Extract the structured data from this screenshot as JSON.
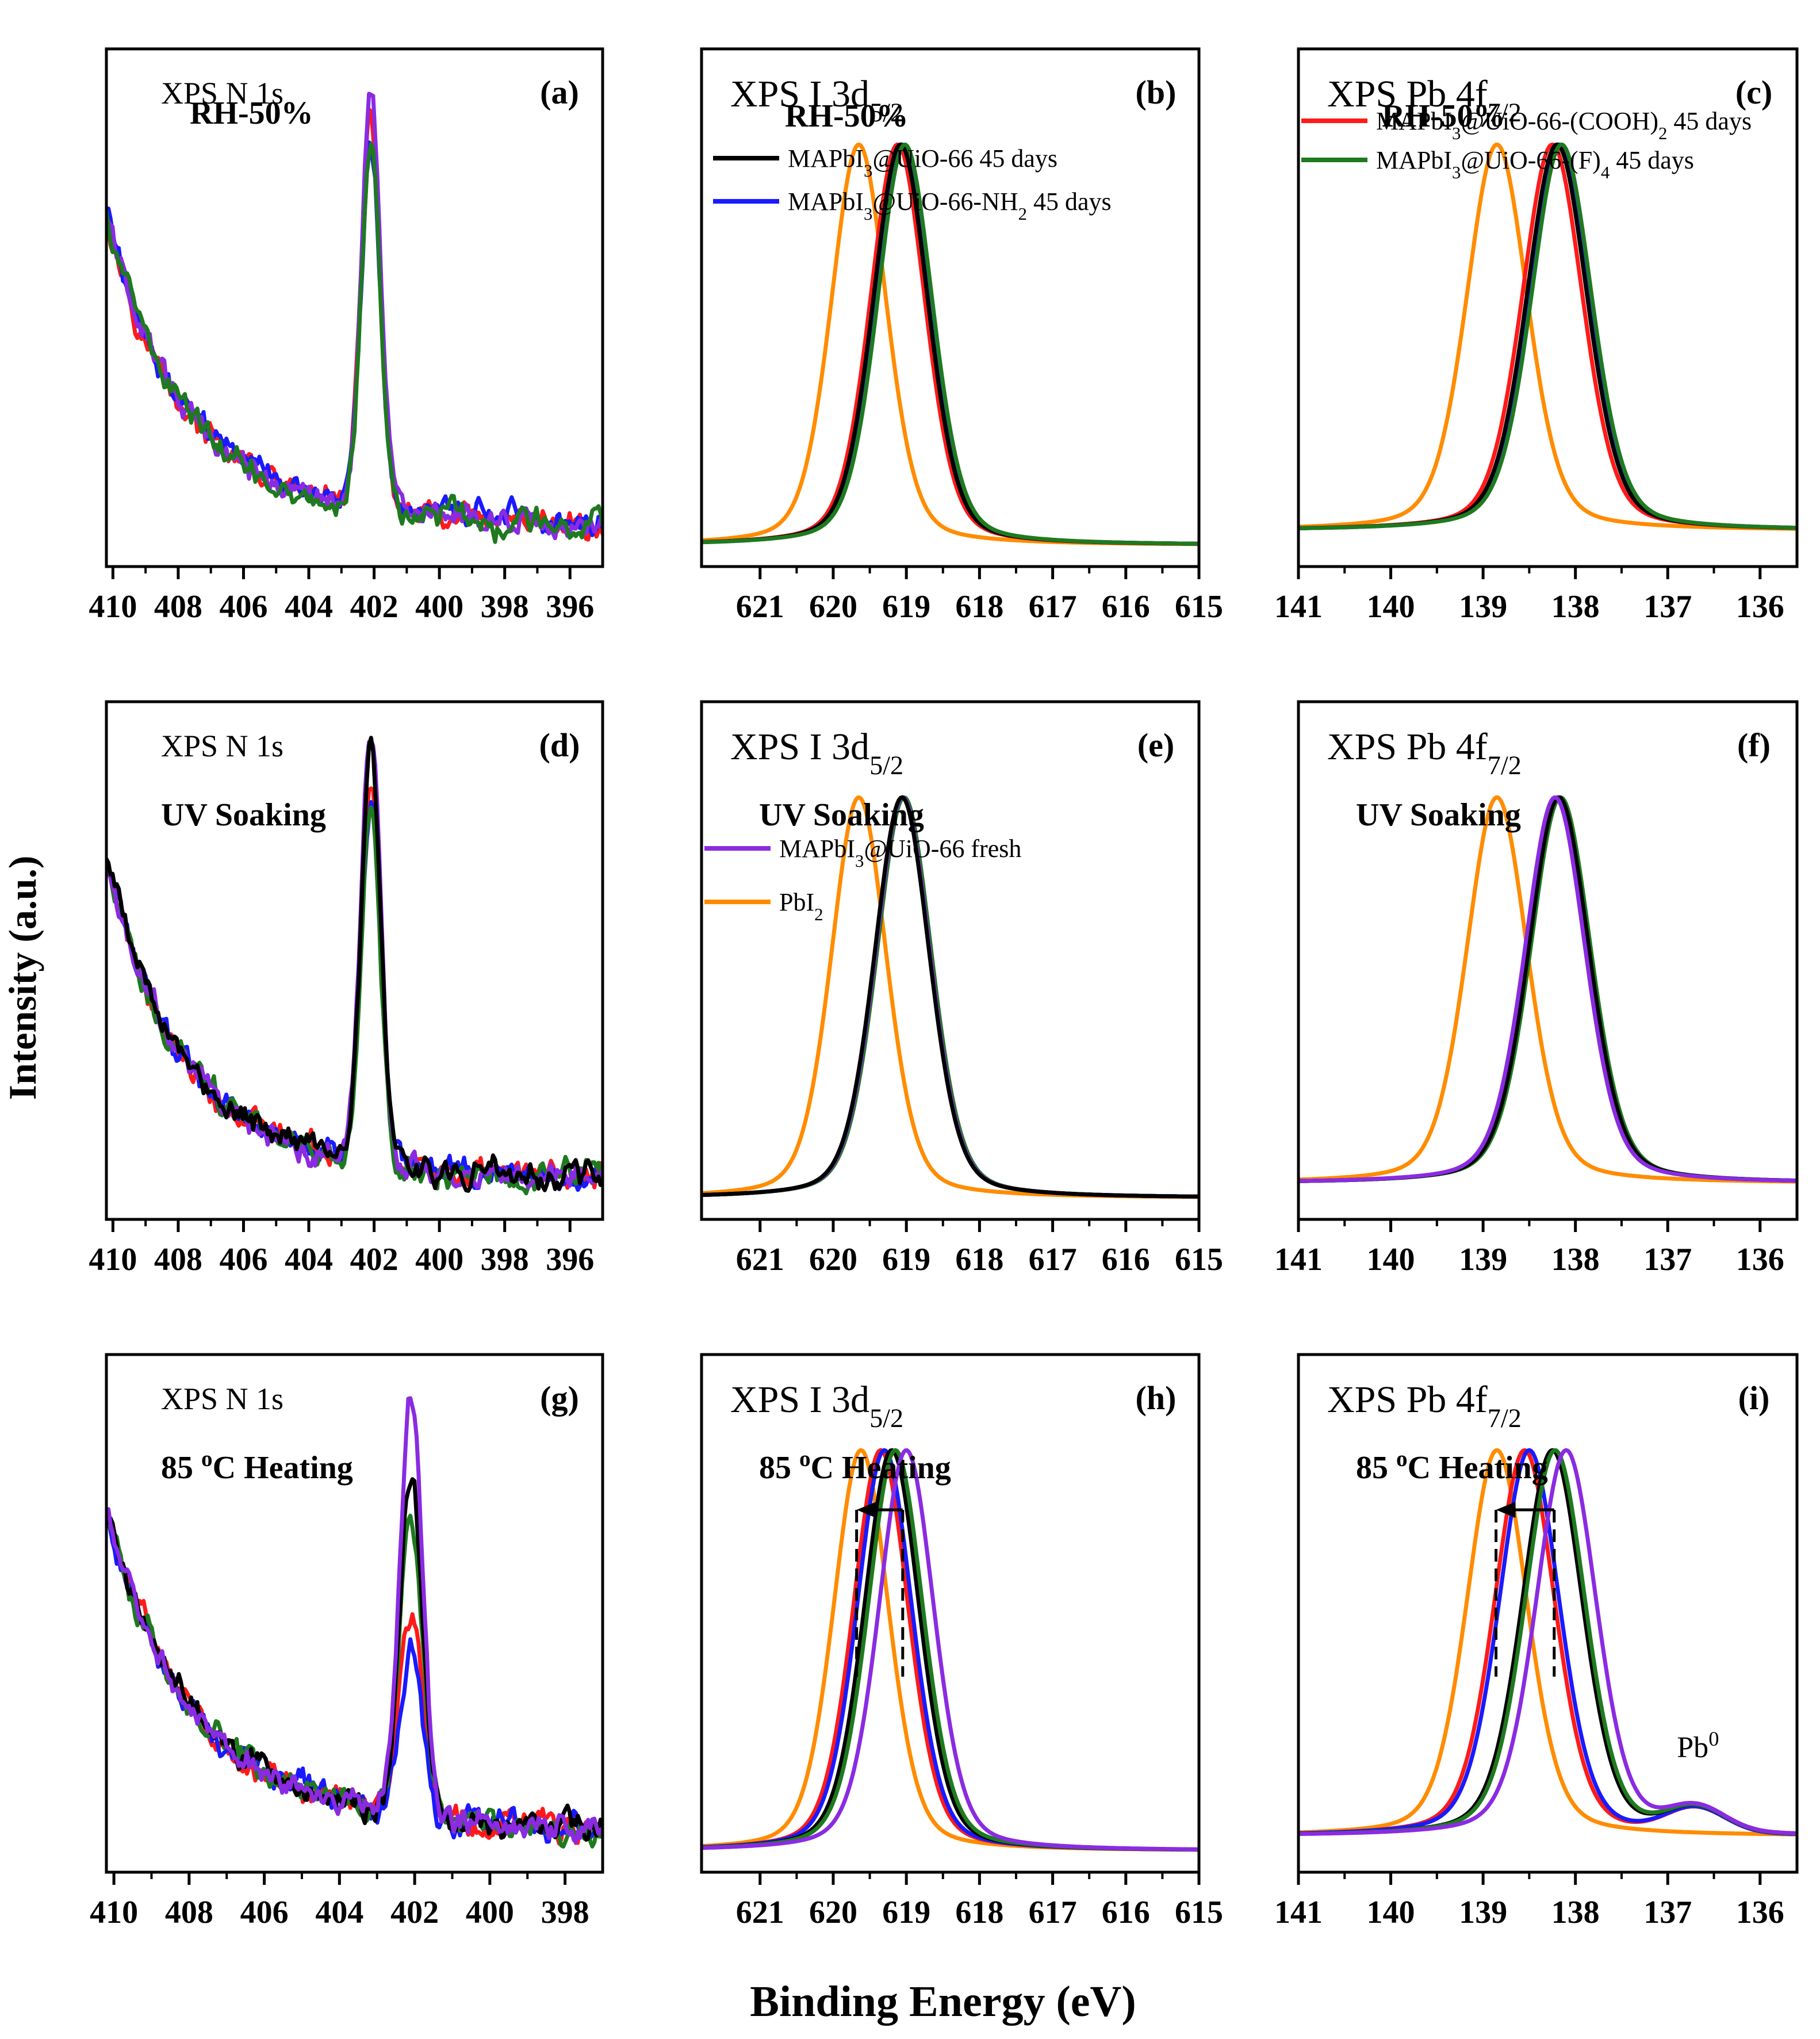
{
  "figure": {
    "ylabel": "Intensity (a.u.)",
    "xlabel": "Binding Energy (eV)"
  },
  "colors": {
    "MAPbI3@UiO-66 45 days": "#000000",
    "MAPbI3@UiO-66-NH2 45 days": "#1a1aff",
    "MAPbI3@UiO-66-(COOH)2 45 days": "#ff1a1a",
    "MAPbI3@UiO-66-(F)4 45 days": "#1f7a1f",
    "MAPbI3@UiO-66 fresh": "#8a2be2",
    "PbI2": "#ff8c00"
  },
  "chart_data": [
    {
      "panel": "(a)",
      "type": "line",
      "title": "XPS N 1s",
      "condition": "RH-50%",
      "kind": "N1s",
      "xlim": [
        410.2,
        395.0
      ],
      "ticks": [
        "410",
        "408",
        "406",
        "404",
        "402",
        "400",
        "398",
        "396"
      ],
      "series": [
        {
          "name": "MAPbI3@UiO-66-(COOH)2 45 days",
          "peak": 0.8
        },
        {
          "name": "MAPbI3@UiO-66-NH2 45 days",
          "peak": 0.75
        },
        {
          "name": "MAPbI3@UiO-66 fresh",
          "peak": 0.86
        },
        {
          "name": "MAPbI3@UiO-66-(F)4 45 days",
          "peak": 0.74
        }
      ]
    },
    {
      "panel": "(b)",
      "type": "line",
      "title": "XPS I 3d",
      "subscript": "5/2",
      "condition": "RH-50%",
      "kind": "I3d",
      "xlim": [
        621.8,
        615.0
      ],
      "ticks": [
        "621",
        "620",
        "619",
        "618",
        "617",
        "616",
        "615"
      ],
      "series": [
        {
          "name": "PbI2",
          "center": 619.65
        },
        {
          "name": "MAPbI3@UiO-66-(COOH)2 45 days",
          "center": 619.12
        },
        {
          "name": "MAPbI3@UiO-66-NH2 45 days",
          "center": 619.05
        },
        {
          "name": "MAPbI3@UiO-66 45 days",
          "center": 619.08
        },
        {
          "name": "MAPbI3@UiO-66-(F)4 45 days",
          "center": 619.02
        }
      ],
      "legend": [
        {
          "prefix": "MAPbI",
          "sub": "3",
          "suffix": "@UiO-66 45 days",
          "color": "#000000"
        },
        {
          "prefix": "MAPbI",
          "sub": "3",
          "suffix": "@UiO-66-NH",
          "sub2": "2",
          "suffix2": " 45 days",
          "color": "#1a1aff"
        }
      ]
    },
    {
      "panel": "(c)",
      "type": "line",
      "title": "XPS Pb 4f",
      "subscript": "7/2",
      "condition": "RH-50%",
      "kind": "Pb4f",
      "xlim": [
        141.0,
        135.6
      ],
      "ticks": [
        "141",
        "140",
        "139",
        "138",
        "137",
        "136"
      ],
      "series": [
        {
          "name": "PbI2",
          "center": 138.85
        },
        {
          "name": "MAPbI3@UiO-66-(COOH)2 45 days",
          "center": 138.25
        },
        {
          "name": "MAPbI3@UiO-66-NH2 45 days",
          "center": 138.18
        },
        {
          "name": "MAPbI3@UiO-66 45 days",
          "center": 138.2
        },
        {
          "name": "MAPbI3@UiO-66-(F)4 45 days",
          "center": 138.15
        }
      ],
      "legend": [
        {
          "prefix": "MAPbI",
          "sub": "3",
          "suffix": "@UiO-66-(COOH)",
          "sub2": "2",
          "suffix2": " 45 days",
          "color": "#ff1a1a"
        },
        {
          "prefix": "MAPbI",
          "sub": "3",
          "suffix": "@UiO-66-(F)",
          "sub2": "4",
          "suffix2": " 45 days",
          "color": "#1f7a1f"
        }
      ]
    },
    {
      "panel": "(d)",
      "type": "line",
      "title": "XPS N 1s",
      "condition": "UV Soaking",
      "kind": "N1s",
      "xlim": [
        410.2,
        395.0
      ],
      "ticks": [
        "410",
        "408",
        "406",
        "404",
        "402",
        "400",
        "398",
        "396"
      ],
      "series": [
        {
          "name": "MAPbI3@UiO-66-(COOH)2 45 days",
          "peak": 0.8
        },
        {
          "name": "MAPbI3@UiO-66-NH2 45 days",
          "peak": 0.73
        },
        {
          "name": "MAPbI3@UiO-66-(F)4 45 days",
          "peak": 0.72
        },
        {
          "name": "MAPbI3@UiO-66 fresh",
          "peak": 0.88
        },
        {
          "name": "MAPbI3@UiO-66 45 days",
          "peak": 0.85
        }
      ]
    },
    {
      "panel": "(e)",
      "type": "line",
      "title": "XPS I 3d",
      "subscript": "5/2",
      "condition": "UV Soaking",
      "kind": "I3d",
      "xlim": [
        621.8,
        615.0
      ],
      "ticks": [
        "621",
        "620",
        "619",
        "618",
        "617",
        "616",
        "615"
      ],
      "series": [
        {
          "name": "PbI2",
          "center": 619.65
        },
        {
          "name": "MAPbI3@UiO-66-(COOH)2 45 days",
          "center": 619.05
        },
        {
          "name": "MAPbI3@UiO-66-NH2 45 days",
          "center": 619.05
        },
        {
          "name": "MAPbI3@UiO-66-(F)4 45 days",
          "center": 619.03
        },
        {
          "name": "MAPbI3@UiO-66 fresh",
          "center": 619.05
        },
        {
          "name": "MAPbI3@UiO-66 45 days",
          "center": 619.06
        }
      ],
      "legend": [
        {
          "prefix": "MAPbI",
          "sub": "3",
          "suffix": "@UiO-66 fresh",
          "color": "#8a2be2"
        },
        {
          "prefix": "PbI",
          "sub": "2",
          "suffix": "",
          "color": "#ff8c00"
        }
      ]
    },
    {
      "panel": "(f)",
      "type": "line",
      "title": "XPS Pb 4f",
      "subscript": "7/2",
      "condition": "UV Soaking",
      "kind": "Pb4f",
      "xlim": [
        141.0,
        135.6
      ],
      "ticks": [
        "141",
        "140",
        "139",
        "138",
        "137",
        "136"
      ],
      "series": [
        {
          "name": "PbI2",
          "center": 138.85
        },
        {
          "name": "MAPbI3@UiO-66-(COOH)2 45 days",
          "center": 138.2
        },
        {
          "name": "MAPbI3@UiO-66-NH2 45 days",
          "center": 138.18
        },
        {
          "name": "MAPbI3@UiO-66-(F)4 45 days",
          "center": 138.16
        },
        {
          "name": "MAPbI3@UiO-66 45 days",
          "center": 138.18
        },
        {
          "name": "MAPbI3@UiO-66 fresh",
          "center": 138.22
        }
      ]
    },
    {
      "panel": "(g)",
      "type": "line",
      "title": "XPS N 1s",
      "condition": "85 oC Heating",
      "kind": "N1s",
      "xlim": [
        410.2,
        397.0
      ],
      "ticks": [
        "410",
        "408",
        "406",
        "404",
        "402",
        "400",
        "398"
      ],
      "series": [
        {
          "name": "MAPbI3@UiO-66-(COOH)2 45 days",
          "peak": 0.4
        },
        {
          "name": "MAPbI3@UiO-66-NH2 45 days",
          "peak": 0.34
        },
        {
          "name": "MAPbI3@UiO-66-(F)4 45 days",
          "peak": 0.62
        },
        {
          "name": "MAPbI3@UiO-66 45 days",
          "peak": 0.7
        },
        {
          "name": "MAPbI3@UiO-66 fresh",
          "peak": 0.88
        }
      ]
    },
    {
      "panel": "(h)",
      "type": "line",
      "title": "XPS I 3d",
      "subscript": "5/2",
      "condition": "85 oC Heating",
      "kind": "I3d",
      "xlim": [
        621.8,
        615.0
      ],
      "ticks": [
        "621",
        "620",
        "619",
        "618",
        "617",
        "616",
        "615"
      ],
      "series": [
        {
          "name": "PbI2",
          "center": 619.62
        },
        {
          "name": "MAPbI3@UiO-66-(COOH)2 45 days",
          "center": 619.35
        },
        {
          "name": "MAPbI3@UiO-66-NH2 45 days",
          "center": 619.3
        },
        {
          "name": "MAPbI3@UiO-66 45 days",
          "center": 619.2
        },
        {
          "name": "MAPbI3@UiO-66-(F)4 45 days",
          "center": 619.15
        },
        {
          "name": "MAPbI3@UiO-66 fresh",
          "center": 619.0
        }
      ],
      "shift_arrow": {
        "from": 619.05,
        "to": 619.68
      }
    },
    {
      "panel": "(i)",
      "type": "line",
      "title": "XPS Pb 4f",
      "subscript": "7/2",
      "condition": "85 oC Heating",
      "kind": "Pb4f",
      "xlim": [
        141.0,
        135.6
      ],
      "ticks": [
        "141",
        "140",
        "139",
        "138",
        "137",
        "136"
      ],
      "series": [
        {
          "name": "PbI2",
          "center": 138.85
        },
        {
          "name": "MAPbI3@UiO-66-(COOH)2 45 days",
          "center": 138.55
        },
        {
          "name": "MAPbI3@UiO-66-NH2 45 days",
          "center": 138.5
        },
        {
          "name": "MAPbI3@UiO-66 45 days",
          "center": 138.25
        },
        {
          "name": "MAPbI3@UiO-66-(F)4 45 days",
          "center": 138.22
        },
        {
          "name": "MAPbI3@UiO-66 fresh",
          "center": 138.1
        }
      ],
      "shift_arrow": {
        "from": 138.23,
        "to": 138.86
      },
      "annotation": {
        "text": "Pb",
        "sup": "0",
        "x": 136.9
      }
    }
  ]
}
